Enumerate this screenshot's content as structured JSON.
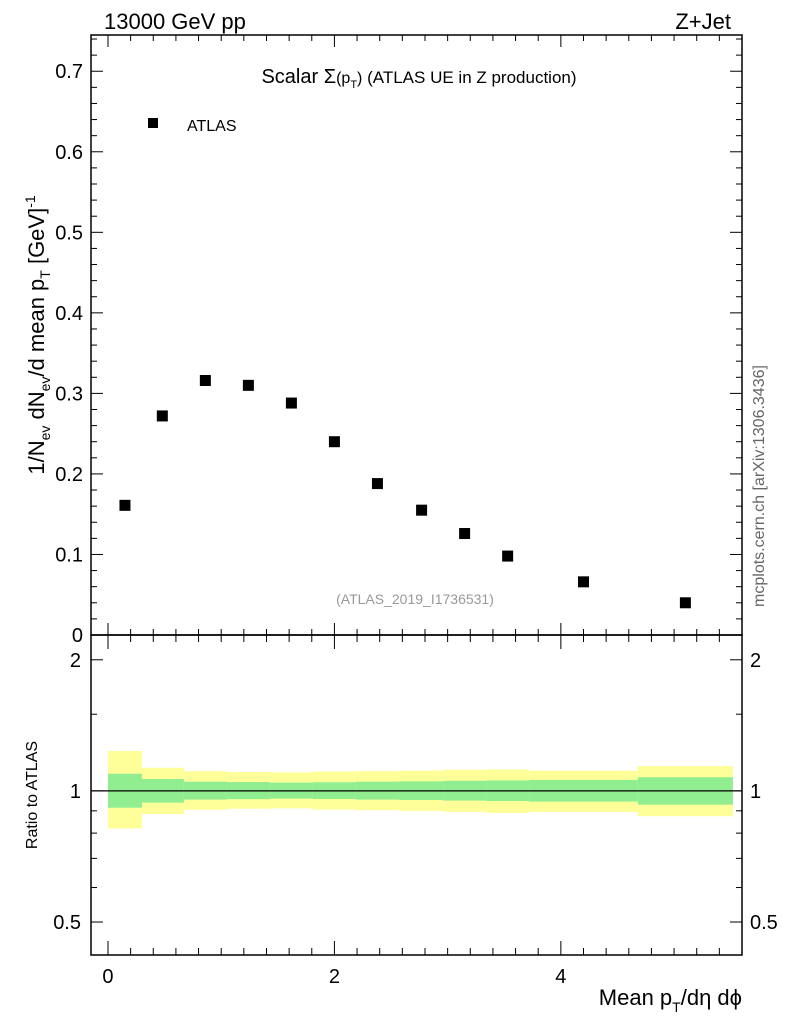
{
  "header": {
    "left": "13000 GeV pp",
    "right": "Z+Jet"
  },
  "side_label": "mcplots.cern.ch [arXiv:1306.3436]",
  "chart_data": [
    {
      "type": "scatter",
      "title": {
        "prefix": "Scalar ",
        "sigma": "Σ",
        "paren_open": "(p",
        "sub": "T",
        "paren_close": ")",
        "suffix": " (ATLAS UE in Z production)"
      },
      "ylabel": {
        "part1": "1/N",
        "sub1": "ev",
        "part2": " dN",
        "sub2": "ev",
        "part3": "/d mean p",
        "sub3": "T",
        "part4": " [GeV]",
        "sup": "-1"
      },
      "legend": {
        "label": "ATLAS",
        "placement": "top-left"
      },
      "watermark": "(ATLAS_2019_I1736531)",
      "xlim": [
        -0.15,
        5.6
      ],
      "ylim": [
        0,
        0.745
      ],
      "y_ticks": [
        0,
        0.1,
        0.2,
        0.3,
        0.4,
        0.5,
        0.6,
        0.7
      ],
      "y_tick_labels": [
        "0",
        "0.1",
        "0.2",
        "0.3",
        "0.4",
        "0.5",
        "0.6",
        "0.7"
      ],
      "series": [
        {
          "name": "ATLAS",
          "x": [
            0.15,
            0.48,
            0.86,
            1.24,
            1.62,
            2.0,
            2.38,
            2.77,
            3.15,
            3.53,
            4.2,
            5.1
          ],
          "y": [
            0.161,
            0.272,
            0.316,
            0.31,
            0.288,
            0.24,
            0.188,
            0.155,
            0.126,
            0.098,
            0.066,
            0.04
          ]
        }
      ]
    },
    {
      "type": "area",
      "ylabel": "Ratio to ATLAS",
      "xlabel": {
        "part1": "Mean p",
        "sub": "T",
        "part2": "/dη dϕ"
      },
      "xlim": [
        -0.15,
        5.6
      ],
      "ylim": [
        0.42,
        2.28
      ],
      "y_scale": "log",
      "x_ticks": [
        0,
        2,
        4
      ],
      "x_tick_labels": [
        "0",
        "2",
        "4"
      ],
      "y_ticks": [
        0.5,
        1,
        2
      ],
      "y_tick_labels": [
        "0.5",
        "1",
        "2"
      ],
      "reference_line": 1,
      "bands": {
        "bin_edges": [
          0.0,
          0.3,
          0.67,
          1.05,
          1.43,
          1.81,
          2.19,
          2.57,
          2.96,
          3.34,
          3.72,
          4.68,
          5.52
        ],
        "inner": {
          "color": "#90ee90",
          "lo": [
            0.915,
            0.94,
            0.955,
            0.957,
            0.96,
            0.958,
            0.955,
            0.953,
            0.95,
            0.948,
            0.945,
            0.93
          ],
          "hi": [
            1.095,
            1.065,
            1.05,
            1.048,
            1.045,
            1.047,
            1.05,
            1.052,
            1.055,
            1.057,
            1.06,
            1.075
          ]
        },
        "outer": {
          "color": "#ffff99",
          "lo": [
            0.82,
            0.885,
            0.905,
            0.91,
            0.912,
            0.906,
            0.903,
            0.9,
            0.895,
            0.89,
            0.895,
            0.875
          ],
          "hi": [
            1.235,
            1.13,
            1.11,
            1.105,
            1.103,
            1.108,
            1.11,
            1.113,
            1.118,
            1.12,
            1.113,
            1.14
          ]
        }
      }
    }
  ]
}
